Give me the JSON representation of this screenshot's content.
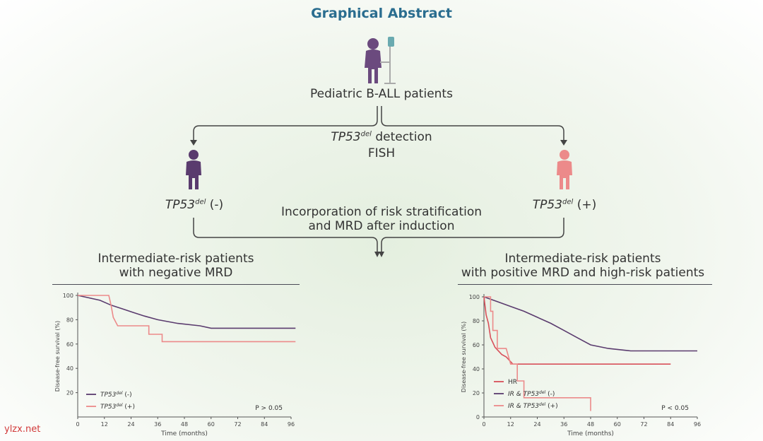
{
  "header": {
    "title": "Graphical Abstract"
  },
  "flow": {
    "patients_label": "Pediatric B-ALL patients",
    "detection_gene": "TP53",
    "detection_sup": "del",
    "detection_text": "detection",
    "detection_method": "FISH",
    "neg_gene": "TP53",
    "neg_sup": "del",
    "neg_suffix": "(-)",
    "pos_gene": "TP53",
    "pos_sup": "del",
    "pos_suffix": "(+)",
    "incorporation_line1": "Incorporation of risk stratification",
    "incorporation_line2": "and MRD after induction"
  },
  "colors": {
    "title": "#2a6d8f",
    "purple": "#5a3b6e",
    "pink": "#ec8a8a",
    "red": "#d8505a"
  },
  "left_panel": {
    "heading_line1": "Intermediate-risk patients",
    "heading_line2": "with negative MRD"
  },
  "right_panel": {
    "heading_line1": "Intermediate-risk patients",
    "heading_line2": "with positive MRD and high-risk patients"
  },
  "chart_data": [
    {
      "type": "line",
      "title": "Intermediate-risk patients with negative MRD",
      "xlabel": "Time (months)",
      "ylabel": "Disease-free survival (%)",
      "xlim": [
        0,
        96
      ],
      "ylim": [
        0,
        100
      ],
      "xticks": [
        0,
        12,
        24,
        36,
        48,
        60,
        72,
        84,
        96
      ],
      "yticks": [
        20,
        40,
        60,
        80,
        100
      ],
      "p_value": "P > 0.05",
      "series": [
        {
          "name": "TP53del (-)",
          "name_gene": "TP53",
          "name_sup": "del",
          "name_suffix": "(-)",
          "color": "#5a3b6e",
          "points": [
            [
              0,
              100
            ],
            [
              5,
              98
            ],
            [
              10,
              96
            ],
            [
              15,
              92
            ],
            [
              20,
              89
            ],
            [
              25,
              86
            ],
            [
              30,
              83
            ],
            [
              36,
              80
            ],
            [
              45,
              77
            ],
            [
              55,
              75
            ],
            [
              60,
              73
            ],
            [
              70,
              73
            ],
            [
              80,
              73
            ],
            [
              90,
              73
            ],
            [
              98,
              73
            ]
          ]
        },
        {
          "name": "TP53del (+)",
          "name_gene": "TP53",
          "name_sup": "del",
          "name_suffix": "(+)",
          "color": "#ec8a8a",
          "points": [
            [
              0,
              100
            ],
            [
              14,
              100
            ],
            [
              15,
              92
            ],
            [
              16,
              82
            ],
            [
              18,
              75
            ],
            [
              32,
              75
            ],
            [
              32,
              68
            ],
            [
              38,
              68
            ],
            [
              38,
              62
            ],
            [
              50,
              62
            ],
            [
              98,
              62
            ]
          ]
        }
      ]
    },
    {
      "type": "line",
      "title": "Intermediate-risk patients with positive MRD and high-risk patients",
      "xlabel": "Time (months)",
      "ylabel": "Disease-free survival (%)",
      "xlim": [
        0,
        96
      ],
      "ylim": [
        0,
        100
      ],
      "xticks": [
        0,
        12,
        24,
        36,
        48,
        60,
        72,
        84,
        96
      ],
      "yticks": [
        0,
        20,
        40,
        60,
        80,
        100
      ],
      "p_value": "P < 0.05",
      "series": [
        {
          "name": "HR",
          "name_gene": "",
          "name_sup": "",
          "name_suffix": "HR",
          "color": "#d8505a",
          "points": [
            [
              0,
              100
            ],
            [
              1,
              85
            ],
            [
              2,
              78
            ],
            [
              3,
              66
            ],
            [
              4,
              62
            ],
            [
              5,
              58
            ],
            [
              6,
              56
            ],
            [
              8,
              52
            ],
            [
              10,
              50
            ],
            [
              12,
              46
            ],
            [
              13,
              44
            ],
            [
              84,
              44
            ]
          ]
        },
        {
          "name": "IR & TP53del (-)",
          "name_gene": "IR & TP53",
          "name_sup": "del",
          "name_suffix": "(-)",
          "color": "#5a3b6e",
          "points": [
            [
              0,
              100
            ],
            [
              6,
              96
            ],
            [
              12,
              92
            ],
            [
              18,
              88
            ],
            [
              24,
              83
            ],
            [
              30,
              78
            ],
            [
              36,
              72
            ],
            [
              42,
              66
            ],
            [
              48,
              60
            ],
            [
              56,
              57
            ],
            [
              66,
              55
            ],
            [
              80,
              55
            ],
            [
              96,
              55
            ]
          ]
        },
        {
          "name": "IR & TP53del (+)",
          "name_gene": "IR & TP53",
          "name_sup": "del",
          "name_suffix": "(+)",
          "color": "#ec8a8a",
          "points": [
            [
              0,
              100
            ],
            [
              3,
              100
            ],
            [
              3,
              88
            ],
            [
              4,
              88
            ],
            [
              4,
              72
            ],
            [
              6,
              72
            ],
            [
              6,
              57
            ],
            [
              10,
              57
            ],
            [
              12,
              44
            ],
            [
              15,
              44
            ],
            [
              15,
              30
            ],
            [
              18,
              30
            ],
            [
              18,
              16
            ],
            [
              48,
              16
            ],
            [
              48,
              5
            ]
          ]
        }
      ]
    }
  ]
}
